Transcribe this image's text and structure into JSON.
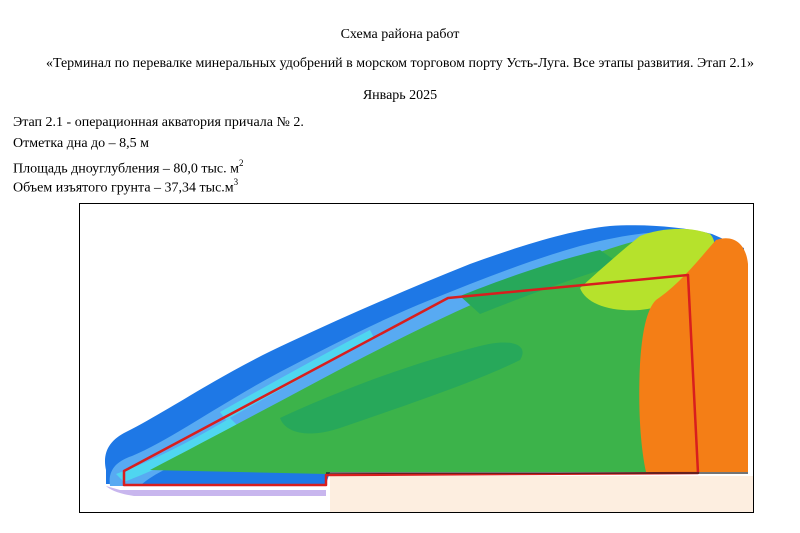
{
  "header": {
    "title": "Схема района работ",
    "project": "«Терминал по перевалке минеральных удобрений в морском торговом порту Усть-Луга. Все этапы развития. Этап 2.1»",
    "date": "Январь 2025"
  },
  "info": {
    "stage": "Этап 2.1 -  операционная акватория причала № 2.",
    "depth": "Отметка дна до – 8,5 м",
    "area_text": "Площадь дноуглубления – 80,0 тыс. м",
    "area_unit_sup": "2",
    "volume_text": "Объем изъятого грунта – 37,34 тыс.м",
    "volume_unit_sup": "3"
  },
  "map": {
    "colors": {
      "deep_blue": "#1e78e6",
      "light_blue": "#58aaf2",
      "cyan": "#4fd6f0",
      "green_dark": "#27a85a",
      "green": "#3cb34a",
      "lime": "#b6e22c",
      "orange": "#f47e16",
      "shore": "#fdeee0",
      "boundary": "#d81e1e",
      "lilac": "#c8b6ee"
    }
  }
}
